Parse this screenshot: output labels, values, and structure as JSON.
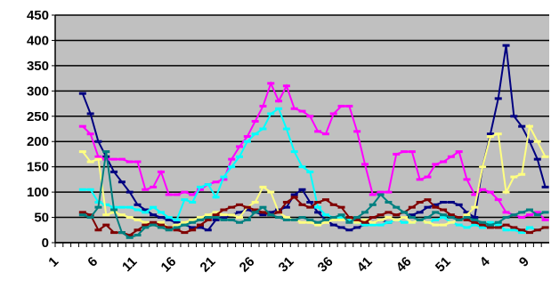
{
  "chart_data": {
    "type": "line",
    "categories": [
      "1",
      null,
      null,
      null,
      null,
      "6",
      null,
      null,
      null,
      null,
      "11",
      null,
      null,
      null,
      null,
      "16",
      null,
      null,
      null,
      null,
      "21",
      null,
      null,
      null,
      null,
      "26",
      null,
      null,
      null,
      null,
      "31",
      null,
      null,
      null,
      null,
      "36",
      null,
      null,
      null,
      null,
      "41",
      null,
      null,
      null,
      null,
      "46",
      null,
      null,
      null,
      null,
      "51",
      null,
      null,
      null,
      null,
      "4",
      null,
      null,
      null,
      null,
      "9",
      null,
      null
    ],
    "ylim": [
      0,
      450
    ],
    "yticks": [
      0,
      50,
      100,
      150,
      200,
      250,
      300,
      350,
      400,
      450
    ],
    "grid": true,
    "series": [
      {
        "color": "#000080",
        "values": [
          null,
          null,
          null,
          295,
          255,
          200,
          170,
          140,
          120,
          100,
          75,
          65,
          55,
          50,
          45,
          40,
          35,
          30,
          30,
          25,
          45,
          50,
          55,
          60,
          65,
          60,
          55,
          60,
          65,
          70,
          95,
          105,
          80,
          60,
          45,
          35,
          30,
          25,
          30,
          35,
          40,
          45,
          40,
          45,
          50,
          55,
          60,
          70,
          75,
          80,
          80,
          75,
          60,
          50,
          150,
          215,
          285,
          390,
          250,
          230,
          200,
          165,
          110
        ]
      },
      {
        "color": "#ff00ff",
        "values": [
          null,
          null,
          null,
          230,
          215,
          170,
          165,
          165,
          165,
          160,
          160,
          105,
          110,
          140,
          95,
          95,
          100,
          95,
          105,
          115,
          120,
          125,
          165,
          190,
          210,
          240,
          270,
          315,
          280,
          310,
          265,
          260,
          250,
          220,
          215,
          255,
          270,
          270,
          220,
          155,
          95,
          100,
          100,
          175,
          180,
          180,
          125,
          130,
          155,
          160,
          170,
          180,
          125,
          95,
          105,
          100,
          85,
          60,
          55,
          50,
          55,
          60,
          45
        ]
      },
      {
        "color": "#00ffff",
        "values": [
          null,
          null,
          null,
          105,
          105,
          80,
          75,
          70,
          70,
          70,
          65,
          60,
          70,
          60,
          50,
          45,
          85,
          80,
          110,
          115,
          90,
          130,
          150,
          170,
          200,
          215,
          225,
          255,
          265,
          225,
          180,
          150,
          140,
          70,
          55,
          50,
          50,
          45,
          40,
          35,
          35,
          35,
          40,
          45,
          40,
          40,
          45,
          40,
          45,
          50,
          40,
          35,
          30,
          35,
          30,
          40,
          35,
          25,
          25,
          20,
          30,
          25,
          30
        ]
      },
      {
        "color": "#ffff80",
        "values": [
          null,
          null,
          null,
          180,
          160,
          165,
          55,
          60,
          55,
          50,
          45,
          40,
          35,
          40,
          30,
          35,
          40,
          45,
          50,
          55,
          60,
          55,
          55,
          50,
          70,
          80,
          110,
          100,
          60,
          50,
          45,
          40,
          40,
          35,
          40,
          45,
          45,
          50,
          40,
          45,
          40,
          45,
          50,
          45,
          50,
          40,
          45,
          40,
          35,
          35,
          40,
          45,
          55,
          70,
          150,
          210,
          215,
          100,
          130,
          135,
          230,
          200,
          170
        ]
      },
      {
        "color": "#800000",
        "values": [
          null,
          null,
          null,
          60,
          55,
          25,
          35,
          20,
          20,
          15,
          25,
          35,
          40,
          35,
          30,
          25,
          20,
          25,
          35,
          45,
          55,
          65,
          70,
          75,
          70,
          65,
          60,
          55,
          60,
          80,
          90,
          75,
          70,
          80,
          85,
          75,
          70,
          50,
          45,
          40,
          50,
          55,
          60,
          55,
          60,
          70,
          80,
          85,
          70,
          65,
          55,
          50,
          45,
          40,
          35,
          30,
          30,
          35,
          30,
          25,
          20,
          25,
          30
        ]
      },
      {
        "color": "#008080",
        "values": [
          null,
          null,
          null,
          55,
          50,
          70,
          180,
          65,
          20,
          10,
          15,
          30,
          35,
          30,
          25,
          30,
          35,
          40,
          45,
          50,
          50,
          45,
          45,
          40,
          45,
          60,
          70,
          55,
          50,
          45,
          45,
          50,
          45,
          40,
          45,
          50,
          55,
          40,
          50,
          60,
          75,
          95,
          80,
          70,
          60,
          50,
          45,
          50,
          60,
          55,
          50,
          45,
          50,
          45,
          40,
          35,
          40,
          50,
          55,
          60,
          65,
          55,
          60
        ]
      }
    ]
  }
}
